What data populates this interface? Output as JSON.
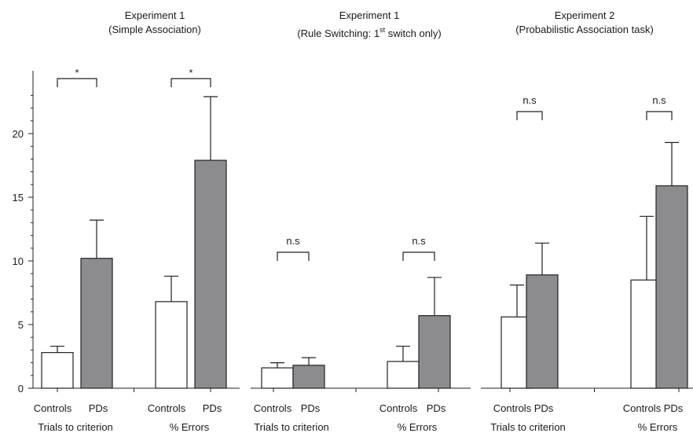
{
  "colors": {
    "controls": "#ffffff",
    "pds": "#8c8c8e",
    "stroke": "#222222"
  },
  "chart_data": {
    "type": "bar",
    "ylim": [
      0,
      24
    ],
    "yticks": [
      0,
      5,
      10,
      15,
      20
    ],
    "grid": false,
    "legend": "none",
    "panels": [
      {
        "title_line1": "Experiment 1",
        "title_line2": "(Simple Association)",
        "groups": [
          {
            "measure": "Trials to criterion",
            "categories": [
              "Controls",
              "PDs"
            ],
            "values": [
              2.8,
              10.2
            ],
            "errors": [
              0.5,
              3.0
            ],
            "significance": "*"
          },
          {
            "measure": "% Errors",
            "categories": [
              "Controls",
              "PDs"
            ],
            "values": [
              6.8,
              17.9
            ],
            "errors": [
              2.0,
              5.0
            ],
            "significance": "*"
          }
        ]
      },
      {
        "title_line1": "Experiment 1",
        "title_line2_prefix": "(Rule Switching: 1",
        "title_line2_sup": "st",
        "title_line2_suffix": " switch only)",
        "groups": [
          {
            "measure": "Trials to criterion",
            "categories": [
              "Controls",
              "PDs"
            ],
            "values": [
              1.6,
              1.8
            ],
            "errors": [
              0.4,
              0.6
            ],
            "significance": "n.s"
          },
          {
            "measure": "% Errors",
            "categories": [
              "Controls",
              "PDs"
            ],
            "values": [
              2.1,
              5.7
            ],
            "errors": [
              1.2,
              3.0
            ],
            "significance": "n.s"
          }
        ]
      },
      {
        "title_line1": "Experiment 2",
        "title_line2": "(Probabilistic Association task)",
        "groups": [
          {
            "measure": "Trials to criterion",
            "categories": [
              "Controls",
              "PDs"
            ],
            "values": [
              5.6,
              8.9
            ],
            "errors": [
              2.5,
              2.5
            ],
            "significance": "n.s"
          },
          {
            "measure": "% Errors",
            "categories": [
              "Controls",
              "PDs"
            ],
            "values": [
              8.5,
              15.9
            ],
            "errors": [
              5.0,
              3.4
            ],
            "significance": "n.s"
          }
        ]
      }
    ]
  }
}
